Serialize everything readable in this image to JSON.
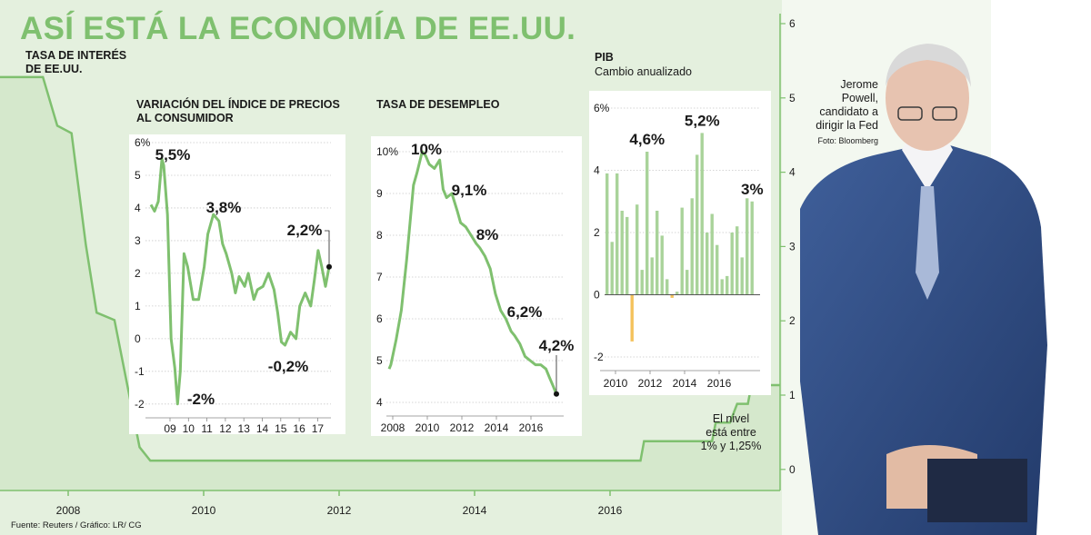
{
  "header": {
    "title": "ASÍ ESTÁ LA ECONOMÍA DE EE.UU."
  },
  "source": "Fuente: Reuters / Gráfico: LR/ CG",
  "photo": {
    "caption_name": "Jerome Powell,",
    "caption_name_line1": "Jerome",
    "caption_name_line2": "Powell,",
    "caption_role_line1": "candidato a",
    "caption_role_line2": "dirigir la Fed",
    "credit": "Foto: Bloomberg"
  },
  "colors": {
    "green": "#7fc06f",
    "green_fill": "#e4f0de",
    "bar_green": "#a9d39a",
    "bar_orange": "#f4c25c",
    "text": "#1a1a1a"
  },
  "chart_data": [
    {
      "id": "tasa-interes",
      "type": "area",
      "title_line1": "TASA DE INTERÉS",
      "title_line2": "DE EE.UU.",
      "x_ticks": [
        "2008",
        "2010",
        "2012",
        "2014",
        "2016"
      ],
      "y_ticks": [
        "6",
        "5",
        "4",
        "3",
        "2",
        "1",
        "0"
      ],
      "ylim": [
        0,
        6
      ],
      "x": [
        2007.0,
        2007.6,
        2007.8,
        2008.0,
        2008.2,
        2008.35,
        2008.6,
        2008.95,
        2009.1,
        2015.95,
        2016.0,
        2016.95,
        2017.0,
        2017.2,
        2017.3,
        2017.45,
        2017.5,
        2017.9
      ],
      "values": [
        5.25,
        5.25,
        4.6,
        4.5,
        3.0,
        2.1,
        2.0,
        0.3,
        0.12,
        0.12,
        0.38,
        0.38,
        0.63,
        0.63,
        0.88,
        0.88,
        1.13,
        1.13
      ],
      "note_line1": "El nivel",
      "note_line2": "está entre",
      "note_line3": "1% y 1,25%"
    },
    {
      "id": "ipc",
      "type": "line",
      "title_line1": "VARIACIÓN DEL ÍNDICE DE PRECIOS",
      "title_line2": "AL CONSUMIDOR",
      "y_ticks": [
        "6%",
        "5",
        "4",
        "3",
        "2",
        "1",
        "0",
        "-1",
        "-2"
      ],
      "x_ticks": [
        "09",
        "10",
        "11",
        "12",
        "13",
        "14",
        "15",
        "16",
        "17"
      ],
      "ylim": [
        -2.2,
        6
      ],
      "x": [
        2007.9,
        2008.1,
        2008.3,
        2008.5,
        2008.6,
        2008.8,
        2009.0,
        2009.2,
        2009.35,
        2009.5,
        2009.7,
        2009.9,
        2010.2,
        2010.5,
        2010.8,
        2011.0,
        2011.3,
        2011.6,
        2011.8,
        2012.0,
        2012.3,
        2012.5,
        2012.7,
        2013.0,
        2013.2,
        2013.5,
        2013.7,
        2014.0,
        2014.3,
        2014.6,
        2014.8,
        2015.0,
        2015.2,
        2015.5,
        2015.8,
        2016.0,
        2016.3,
        2016.6,
        2016.8,
        2017.0,
        2017.2,
        2017.4,
        2017.6
      ],
      "values": [
        4.1,
        3.9,
        4.2,
        5.5,
        5.3,
        3.8,
        0.0,
        -0.9,
        -2.0,
        -1.0,
        2.6,
        2.2,
        1.2,
        1.2,
        2.2,
        3.2,
        3.8,
        3.6,
        2.9,
        2.6,
        2.0,
        1.4,
        1.9,
        1.6,
        2.0,
        1.2,
        1.5,
        1.6,
        2.0,
        1.5,
        0.8,
        -0.1,
        -0.2,
        0.2,
        0.0,
        1.0,
        1.4,
        1.0,
        1.8,
        2.7,
        2.2,
        1.6,
        2.2
      ],
      "annotations": [
        {
          "text": "5,5%",
          "x": 2008.5,
          "y": 5.5
        },
        {
          "text": "-2%",
          "x": 2009.35,
          "y": -2.0
        },
        {
          "text": "3,8%",
          "x": 2011.3,
          "y": 3.8
        },
        {
          "text": "-0,2%",
          "x": 2015.2,
          "y": -0.2
        },
        {
          "text": "2,2%",
          "x": 2017.6,
          "y": 2.2
        }
      ]
    },
    {
      "id": "desempleo",
      "type": "line",
      "title": "TASA DE DESEMPLEO",
      "y_ticks": [
        "10%",
        "9",
        "8",
        "7",
        "6",
        "5",
        "4"
      ],
      "x_ticks": [
        "2008",
        "2010",
        "2012",
        "2014",
        "2016"
      ],
      "ylim": [
        4,
        10
      ],
      "x": [
        2007.9,
        2008.0,
        2008.3,
        2008.6,
        2008.9,
        2009.1,
        2009.3,
        2009.5,
        2009.8,
        2010.0,
        2010.2,
        2010.5,
        2010.8,
        2011.0,
        2011.2,
        2011.5,
        2011.8,
        2012.0,
        2012.3,
        2012.6,
        2012.9,
        2013.1,
        2013.4,
        2013.7,
        2014.0,
        2014.3,
        2014.6,
        2014.9,
        2015.1,
        2015.4,
        2015.7,
        2016.0,
        2016.3,
        2016.6,
        2016.9,
        2017.1,
        2017.3,
        2017.5
      ],
      "values": [
        4.8,
        4.9,
        5.5,
        6.2,
        7.4,
        8.3,
        9.2,
        9.5,
        10.0,
        9.9,
        9.7,
        9.6,
        9.8,
        9.1,
        8.9,
        9.0,
        8.6,
        8.3,
        8.2,
        8.0,
        7.8,
        7.7,
        7.5,
        7.2,
        6.6,
        6.2,
        6.0,
        5.7,
        5.6,
        5.4,
        5.1,
        5.0,
        4.9,
        4.9,
        4.8,
        4.6,
        4.4,
        4.2
      ],
      "annotations": [
        {
          "text": "10%",
          "x": 2009.8,
          "y": 10.0
        },
        {
          "text": "9,1%",
          "x": 2011.0,
          "y": 9.1
        },
        {
          "text": "8%",
          "x": 2012.6,
          "y": 8.0
        },
        {
          "text": "6,2%",
          "x": 2014.3,
          "y": 6.2
        },
        {
          "text": "4,2%",
          "x": 2017.5,
          "y": 4.2
        }
      ]
    },
    {
      "id": "pib",
      "type": "bar",
      "title": "PIB",
      "subtitle": "Cambio anualizado",
      "y_ticks": [
        "6%",
        "4",
        "2",
        "0",
        "-2"
      ],
      "x_ticks": [
        "2010",
        "2012",
        "2014",
        "2016"
      ],
      "ylim": [
        -2,
        6
      ],
      "x_start": 2009.75,
      "x_step": 0.25,
      "values": [
        3.9,
        1.7,
        3.9,
        2.7,
        2.5,
        -1.5,
        2.9,
        0.8,
        4.6,
        1.2,
        2.7,
        1.9,
        0.5,
        -0.1,
        0.1,
        2.8,
        0.8,
        3.1,
        4.5,
        5.2,
        2.0,
        2.6,
        1.6,
        0.5,
        0.6,
        2.0,
        2.2,
        1.2,
        3.1,
        3.0
      ],
      "annotations": [
        {
          "text": "4,6%",
          "index": 8
        },
        {
          "text": "5,2%",
          "index": 19
        },
        {
          "text": "3%",
          "index": 29
        }
      ]
    }
  ]
}
